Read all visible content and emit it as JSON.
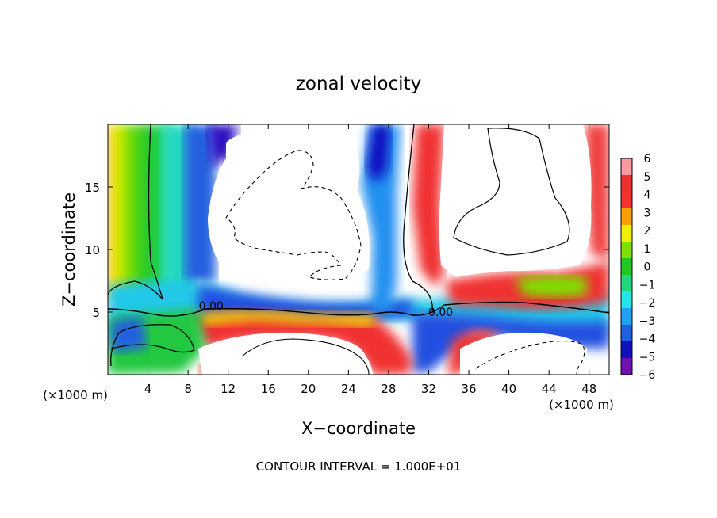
{
  "chart_data": {
    "type": "heatmap",
    "title": "zonal velocity",
    "xlabel": "X−coordinate",
    "ylabel": "Z−coordinate",
    "x_unit_left": "(×1000 m)",
    "x_unit_right": "(×1000 m)",
    "footer": "CONTOUR INTERVAL = 1.000E+01",
    "xlim": [
      0,
      50
    ],
    "ylim": [
      0,
      20
    ],
    "x_ticks": [
      4,
      8,
      12,
      16,
      20,
      24,
      28,
      32,
      36,
      40,
      44,
      48
    ],
    "x_tick_labels": [
      "4",
      "8",
      "12",
      "16",
      "20",
      "24",
      "28",
      "32",
      "36",
      "40",
      "44",
      "48"
    ],
    "y_ticks": [
      5,
      10,
      15
    ],
    "y_tick_labels": [
      "5",
      "10",
      "15"
    ],
    "colorbar": {
      "levels": [
        6,
        5,
        4,
        3,
        2,
        1,
        0,
        -1,
        -2,
        -3,
        -4,
        -5,
        -6
      ],
      "labels": [
        "6",
        "5",
        "4",
        "3",
        "2",
        "1",
        "0",
        "−1",
        "−2",
        "−3",
        "−4",
        "−5",
        "−6"
      ],
      "colors": [
        "#f49aa0",
        "#f03030",
        "#f5302e",
        "#f9a000",
        "#f0f000",
        "#80e000",
        "#20c820",
        "#20d880",
        "#20e8e8",
        "#20a0f0",
        "#2060e0",
        "#1010c0",
        "#7010b0"
      ]
    },
    "contour_labels": [
      {
        "text": "0.00",
        "x": 10.3,
        "z": 5.5
      },
      {
        "text": "0.00",
        "x": 33.2,
        "z": 5.0
      }
    ]
  }
}
